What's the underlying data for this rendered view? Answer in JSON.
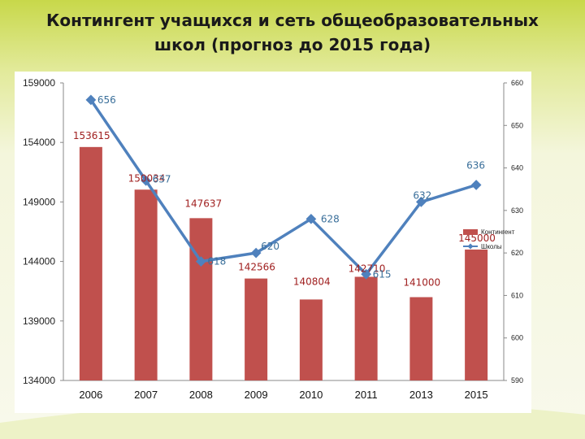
{
  "title_line1": "Контингент учащихся и сеть общеобразовательных",
  "title_line2": "школ (прогноз до 2015 года)",
  "colors": {
    "bar": "#c0504d",
    "line": "#4f81bd",
    "background_top": "#c8d84a",
    "background_bottom": "#f6f8e8"
  },
  "chart_data": {
    "type": "bar",
    "categories": [
      "2006",
      "2007",
      "2008",
      "2009",
      "2010",
      "2011",
      "2013",
      "2015"
    ],
    "series": [
      {
        "name": "Контингент",
        "type": "bar",
        "axis": "left",
        "values": [
          153615,
          150034,
          147637,
          142566,
          140804,
          142710,
          141000,
          145000
        ],
        "labels": [
          "153615",
          "150034",
          "147637",
          "142566",
          "140804",
          "142710",
          "141000",
          "145000"
        ]
      },
      {
        "name": "Школы",
        "type": "line",
        "axis": "right",
        "values": [
          656,
          637,
          618,
          620,
          628,
          615,
          632,
          636
        ],
        "labels": [
          "656",
          "637",
          "618",
          "620",
          "628",
          "615",
          "632",
          "636"
        ]
      }
    ],
    "y_left": {
      "min": 134000,
      "max": 159000,
      "ticks": [
        "134000",
        "139000",
        "144000",
        "149000",
        "154000",
        "159000"
      ]
    },
    "y_right": {
      "min": 590,
      "max": 660,
      "ticks": [
        "590",
        "600",
        "610",
        "620",
        "630",
        "640",
        "650",
        "660"
      ]
    },
    "legend_position": "right"
  }
}
